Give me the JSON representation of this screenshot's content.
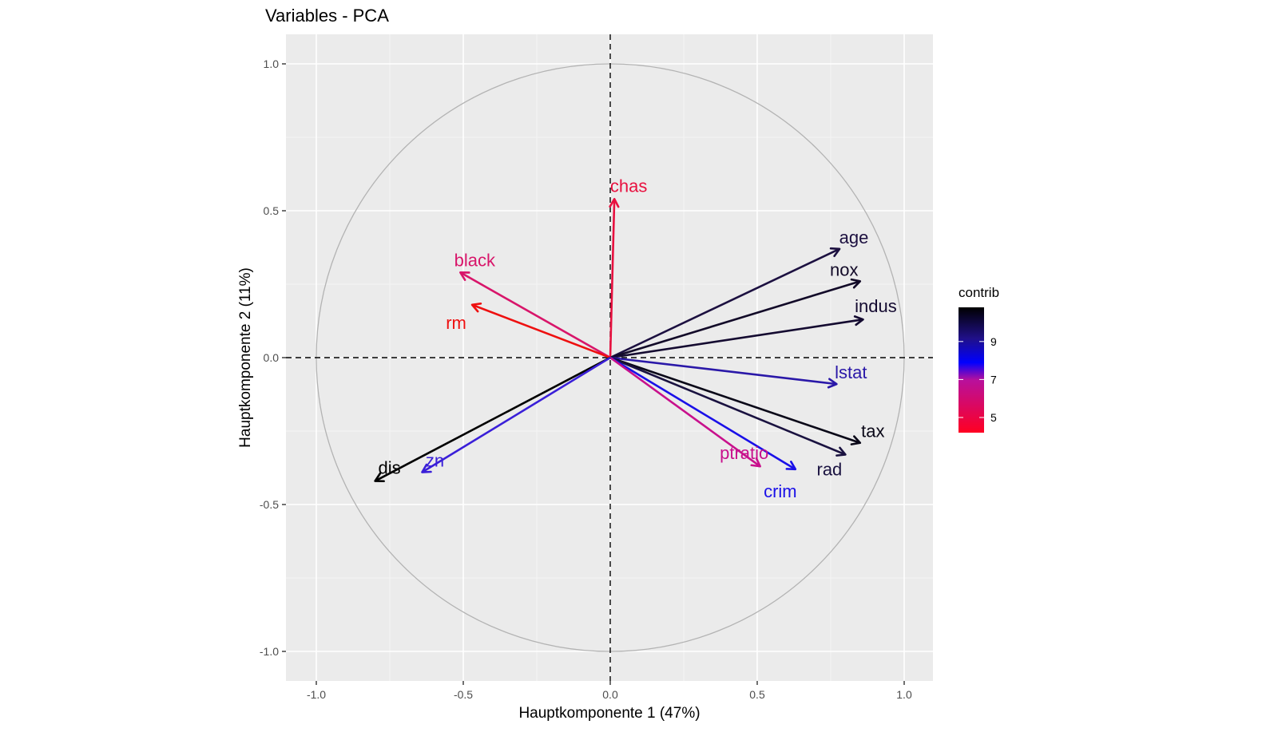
{
  "chart_data": {
    "type": "scatter",
    "subtype": "pca-variable-correlation-circle",
    "title": "Variables - PCA",
    "xlabel": "Hauptkomponente 1 (47%)",
    "ylabel": "Hauptkomponente 2 (11%)",
    "xlim": [
      -1.1,
      1.1
    ],
    "ylim": [
      -1.1,
      1.1
    ],
    "x_ticks": [
      -1.0,
      -0.5,
      0.0,
      0.5,
      1.0
    ],
    "x_tick_labels": [
      "-1.0",
      "-0.5",
      "0.0",
      "0.5",
      "1.0"
    ],
    "y_ticks": [
      -1.0,
      -0.5,
      0.0,
      0.5,
      1.0
    ],
    "y_tick_labels": [
      "-1.0",
      "-0.5",
      "0.0",
      "0.5",
      "1.0"
    ],
    "grid": true,
    "unit_circle": true,
    "reference_lines": {
      "x": 0,
      "y": 0,
      "style": "dashed"
    },
    "legend": {
      "title": "contrib",
      "position": "right",
      "type": "gradient",
      "ticks": [
        5,
        7,
        9
      ],
      "tick_labels": [
        "5",
        "7",
        "9"
      ],
      "range": [
        4.2,
        10.8
      ],
      "colors": {
        "low": "#ff0022",
        "mid": "#0000ff",
        "high": "#000000"
      }
    },
    "variables": [
      {
        "name": "chas",
        "x": 0.014,
        "y": 0.54,
        "color": "#e8103f"
      },
      {
        "name": "age",
        "x": 0.78,
        "y": 0.37,
        "color": "#1c1040"
      },
      {
        "name": "nox",
        "x": 0.85,
        "y": 0.26,
        "color": "#120a28"
      },
      {
        "name": "indus",
        "x": 0.86,
        "y": 0.13,
        "color": "#140a30"
      },
      {
        "name": "lstat",
        "x": 0.77,
        "y": -0.09,
        "color": "#2a18a8"
      },
      {
        "name": "tax",
        "x": 0.85,
        "y": -0.29,
        "color": "#0a0818"
      },
      {
        "name": "rad",
        "x": 0.8,
        "y": -0.33,
        "color": "#1a1240"
      },
      {
        "name": "crim",
        "x": 0.63,
        "y": -0.38,
        "color": "#1a10e8"
      },
      {
        "name": "ptratio",
        "x": 0.51,
        "y": -0.37,
        "color": "#c8108c"
      },
      {
        "name": "black",
        "x": -0.51,
        "y": 0.29,
        "color": "#d8156a"
      },
      {
        "name": "rm",
        "x": -0.47,
        "y": 0.18,
        "color": "#ee1010"
      },
      {
        "name": "dis",
        "x": -0.8,
        "y": -0.42,
        "color": "#000000"
      },
      {
        "name": "zn",
        "x": -0.64,
        "y": -0.39,
        "color": "#3a1fd8"
      }
    ]
  }
}
